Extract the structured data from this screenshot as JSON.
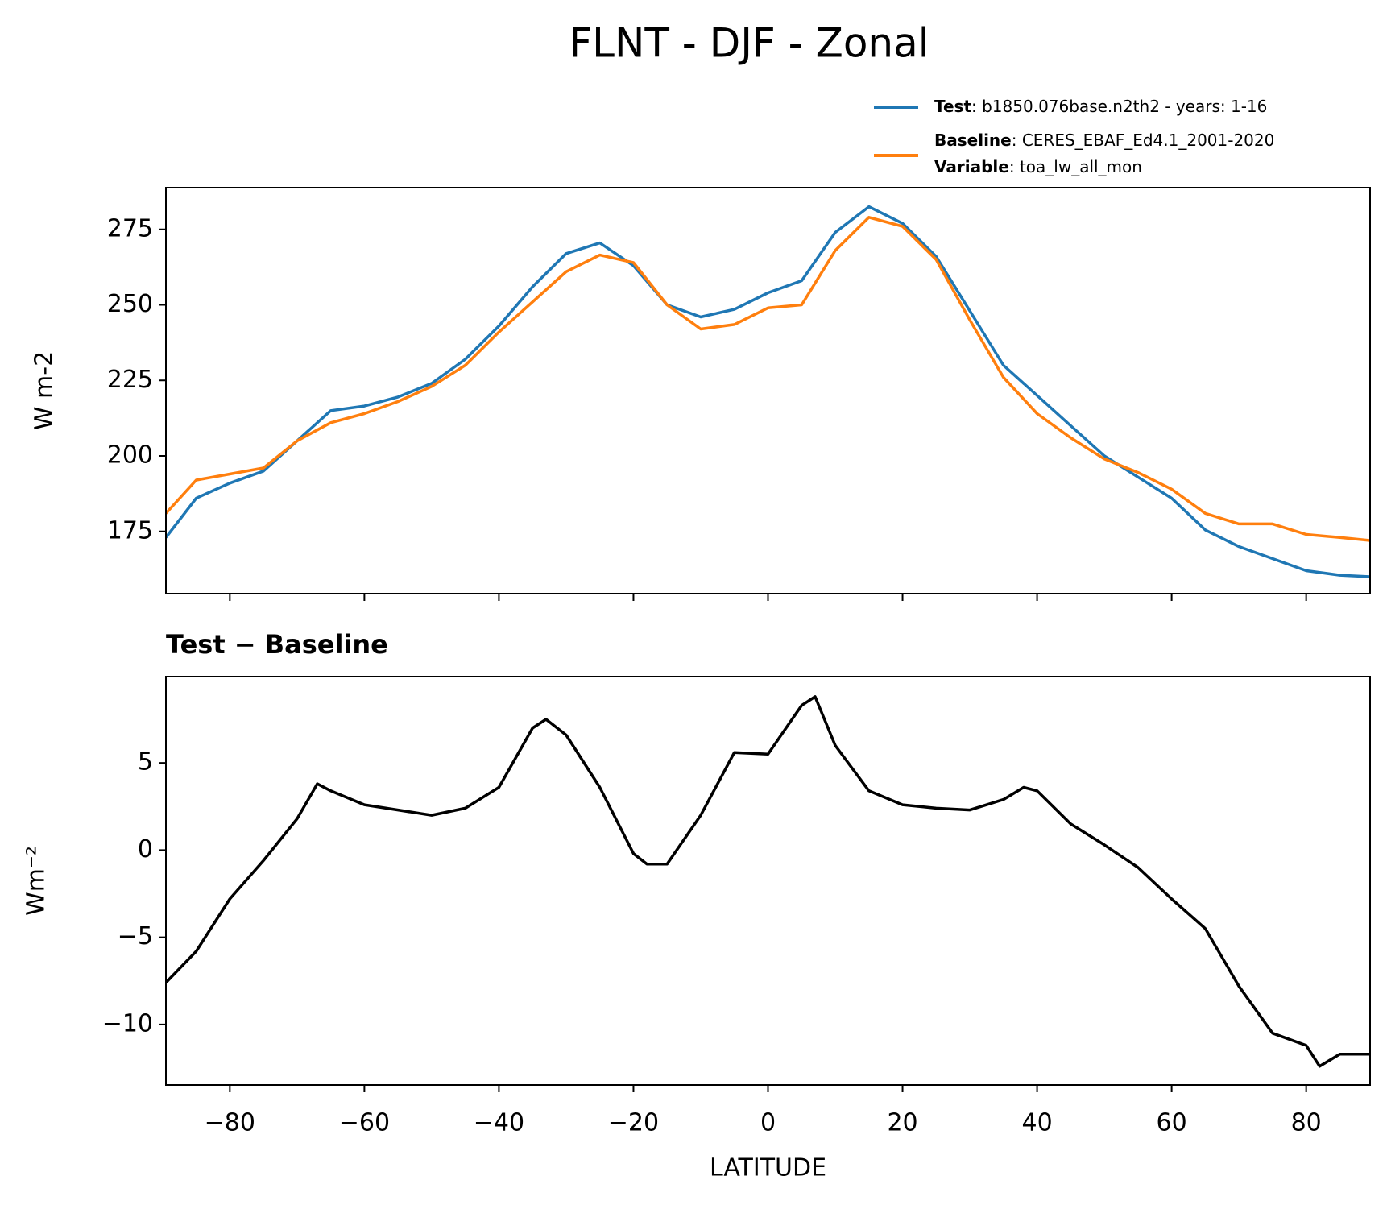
{
  "chart_data": [
    {
      "type": "line",
      "title": "FLNT - DJF - Zonal",
      "ylabel": "W m-2",
      "x": [
        -89.5,
        -85,
        -80,
        -75,
        -70,
        -65,
        -60,
        -55,
        -50,
        -45,
        -40,
        -35,
        -30,
        -25,
        -20,
        -15,
        -10,
        -5,
        0,
        5,
        10,
        15,
        20,
        25,
        30,
        35,
        40,
        45,
        50,
        55,
        60,
        65,
        70,
        75,
        80,
        85,
        89.5
      ],
      "series": [
        {
          "name": "Test",
          "label": ": b1850.076base.n2th2 - years: 1-16",
          "color": "#1f77b4",
          "values": [
            173,
            186,
            191,
            195,
            205,
            215,
            216.5,
            219.5,
            224,
            232,
            243,
            256,
            267,
            270.5,
            263,
            250,
            246,
            248.5,
            254,
            258,
            274,
            282.5,
            277,
            266,
            248,
            230,
            220,
            210,
            200,
            193,
            186,
            175.5,
            170,
            166,
            162,
            160.5,
            160
          ]
        },
        {
          "name": "Baseline",
          "label": ": CERES_EBAF_Ed4.1_2001-2020",
          "color": "#ff7f0e",
          "values": [
            181,
            192,
            194,
            196,
            205,
            211,
            214,
            218,
            223,
            230,
            241,
            251,
            261,
            266.5,
            264,
            250,
            242,
            243.5,
            249,
            250,
            268,
            279,
            276,
            265,
            245,
            226,
            214,
            206,
            199,
            194.5,
            189,
            181,
            177.5,
            177.5,
            174,
            173,
            172
          ]
        }
      ],
      "variable": {
        "name": "Variable",
        "label": ": toa_lw_all_mon"
      },
      "xlim": [
        -89.5,
        89.5
      ],
      "xticks": [
        -80,
        -60,
        -40,
        -20,
        0,
        20,
        40,
        60,
        80
      ],
      "ylim": [
        154.4,
        288.8
      ],
      "yticks": [
        175,
        200,
        225,
        250,
        275
      ]
    },
    {
      "type": "line",
      "title": "Test − Baseline",
      "xlabel": "LATITUDE",
      "ylabel": "Wm⁻²",
      "x": [
        -89.5,
        -85,
        -80,
        -75,
        -70,
        -67,
        -65,
        -60,
        -55,
        -50,
        -45,
        -40,
        -35,
        -33,
        -30,
        -25,
        -20,
        -18,
        -15,
        -10,
        -5,
        0,
        5,
        7,
        10,
        15,
        20,
        25,
        30,
        35,
        38,
        40,
        45,
        50,
        55,
        60,
        65,
        70,
        75,
        80,
        82,
        85,
        89.5
      ],
      "series": [
        {
          "color": "#000000",
          "values": [
            -7.6,
            -5.8,
            -2.8,
            -0.6,
            1.8,
            3.8,
            3.4,
            2.6,
            2.3,
            2.0,
            2.4,
            3.6,
            7.0,
            7.5,
            6.6,
            3.6,
            -0.2,
            -0.8,
            -0.8,
            2.0,
            5.6,
            5.5,
            8.3,
            8.8,
            6.0,
            3.4,
            2.6,
            2.4,
            2.3,
            2.9,
            3.6,
            3.4,
            1.5,
            0.3,
            -1.0,
            -2.8,
            -4.5,
            -7.8,
            -10.5,
            -11.2,
            -12.4,
            -11.7,
            -11.7
          ]
        }
      ],
      "xlim": [
        -89.5,
        89.5
      ],
      "xticks": [
        {
          "value": -80,
          "label": "−80"
        },
        {
          "value": -60,
          "label": "−60"
        },
        {
          "value": -40,
          "label": "−40"
        },
        {
          "value": -20,
          "label": "−20"
        },
        0,
        20,
        40,
        60,
        80
      ],
      "ylim": [
        -13.47,
        9.95
      ],
      "yticks": [
        {
          "value": -10,
          "label": "−10"
        },
        {
          "value": -5,
          "label": "−5"
        },
        0,
        5
      ]
    }
  ]
}
